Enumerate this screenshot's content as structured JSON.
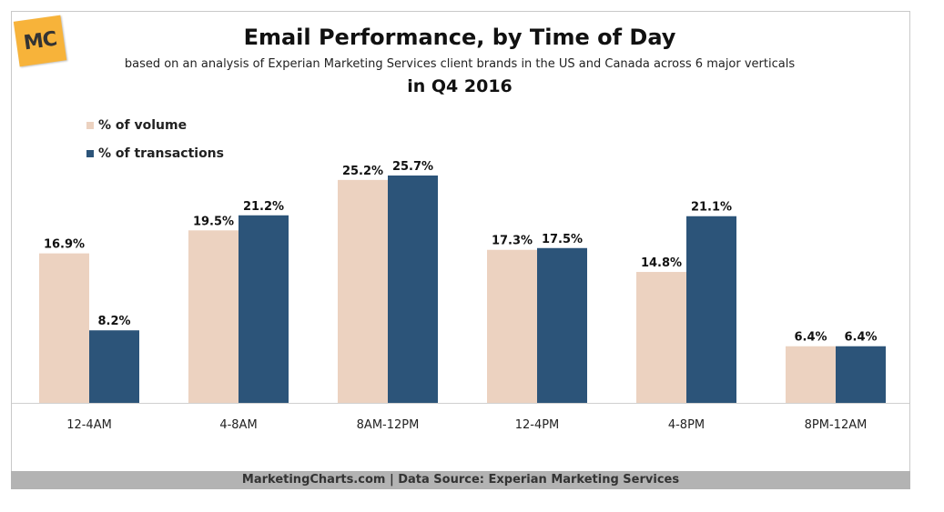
{
  "logo": {
    "text": "MC",
    "color": "#f7b33a"
  },
  "footer": "MarketingCharts.com | Data Source: Experian Marketing Services",
  "chart_data": {
    "type": "bar",
    "title": "Email Performance, by Time of Day",
    "subtitle": "based on an analysis of Experian Marketing Services client brands in the US and Canada across 6 major verticals",
    "subtitle2": "in Q4 2016",
    "categories": [
      "12-4AM",
      "4-8AM",
      "8AM-12PM",
      "12-4PM",
      "4-8PM",
      "8PM-12AM"
    ],
    "series": [
      {
        "name": "% of volume",
        "values": [
          16.9,
          19.5,
          25.2,
          17.3,
          14.8,
          6.4
        ],
        "labels": [
          "16.9%",
          "19.5%",
          "25.2%",
          "17.3%",
          "14.8%",
          "6.4%"
        ],
        "color": "#ecd2c0"
      },
      {
        "name": "% of transactions",
        "values": [
          8.2,
          21.2,
          25.7,
          17.5,
          21.1,
          6.4
        ],
        "labels": [
          "8.2%",
          "21.2%",
          "25.7%",
          "17.5%",
          "21.1%",
          "6.4%"
        ],
        "color": "#2c5479"
      }
    ],
    "ylim": [
      0,
      25.7
    ],
    "legend": "top-left",
    "grid": false
  }
}
